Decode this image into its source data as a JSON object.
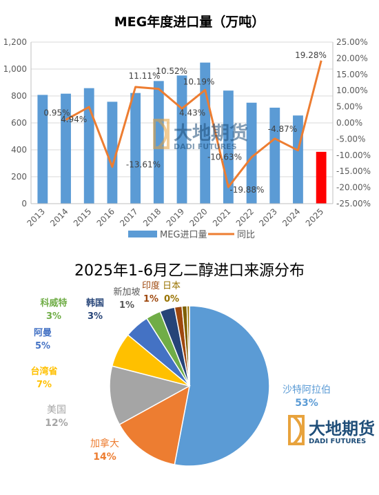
{
  "chart_data": [
    {
      "type": "bar",
      "title": "MEG年度进口量（万吨）",
      "categories": [
        "2013",
        "2014",
        "2015",
        "2016",
        "2017",
        "2018",
        "2019",
        "2020",
        "2021",
        "2022",
        "2023",
        "2024",
        "2025"
      ],
      "series": [
        {
          "name": "MEG进口量",
          "type": "bar",
          "axis": "left",
          "color": "#5b9bd5",
          "values": [
            808,
            817,
            858,
            757,
            822,
            911,
            952,
            1048,
            840,
            750,
            713,
            655,
            385
          ],
          "highlight": {
            "index": 12,
            "color": "#ff0000"
          }
        },
        {
          "name": "同比",
          "type": "line",
          "axis": "right",
          "color": "#ed7d31",
          "values": [
            null,
            0.95,
            4.94,
            -13.61,
            11.11,
            10.52,
            4.43,
            10.19,
            -19.88,
            -10.63,
            -4.87,
            -8.5,
            19.28
          ],
          "labels": [
            null,
            "0.95%",
            "4.94%",
            "-13.61%",
            "11.11%",
            "10.52%",
            "4.43%",
            "10.19%",
            "-19.88%",
            "-10.63%",
            "-4.87%",
            null,
            "19.28%"
          ]
        }
      ],
      "y_left": {
        "ticks": [
          "0",
          "200",
          "400",
          "600",
          "800",
          "1,000",
          "1,200"
        ],
        "lim": [
          0,
          1200
        ]
      },
      "y_right": {
        "ticks": [
          "25.00%",
          "20.00%",
          "15.00%",
          "10.00%",
          "5.00%",
          "0.00%",
          "-5.00%",
          "-10.00%",
          "-15.00%",
          "-20.00%",
          "-25.00%"
        ],
        "lim": [
          -25,
          25
        ]
      },
      "grid": true,
      "legend": "bottom"
    },
    {
      "type": "pie",
      "title": "2025年1-6月乙二醇进口来源分布",
      "slices": [
        {
          "label": "沙特阿拉伯",
          "pct": "53%",
          "value": 53,
          "color": "#5b9bd5",
          "label_color": "#5b9bd5"
        },
        {
          "label": "加拿大",
          "pct": "14%",
          "value": 14,
          "color": "#ed7d31",
          "label_color": "#ed7d31"
        },
        {
          "label": "美国",
          "pct": "12%",
          "value": 12,
          "color": "#a5a5a5",
          "label_color": "#a5a5a5"
        },
        {
          "label": "台湾省",
          "pct": "7%",
          "value": 7,
          "color": "#ffc000",
          "label_color": "#ffc000"
        },
        {
          "label": "阿曼",
          "pct": "5%",
          "value": 5,
          "color": "#4472c4",
          "label_color": "#4472c4"
        },
        {
          "label": "科威特",
          "pct": "3%",
          "value": 3,
          "color": "#70ad47",
          "label_color": "#70ad47"
        },
        {
          "label": "韩国",
          "pct": "3%",
          "value": 3,
          "color": "#264478",
          "label_color": "#264478"
        },
        {
          "label": "新加坡",
          "pct": "1%",
          "value": 1.5,
          "color": "#9e480e",
          "label_color": "#595959"
        },
        {
          "label": "印度",
          "pct": "1%",
          "value": 1,
          "color": "#7f6000",
          "label_color": "#9e480e"
        },
        {
          "label": "日本",
          "pct": "0%",
          "value": 0.5,
          "color": "#997300",
          "label_color": "#997300"
        }
      ]
    }
  ],
  "watermark": {
    "cn": "大地期货",
    "en": "DADI FUTURES",
    "color": "#1f4e79",
    "accent": "#e8a33d"
  }
}
